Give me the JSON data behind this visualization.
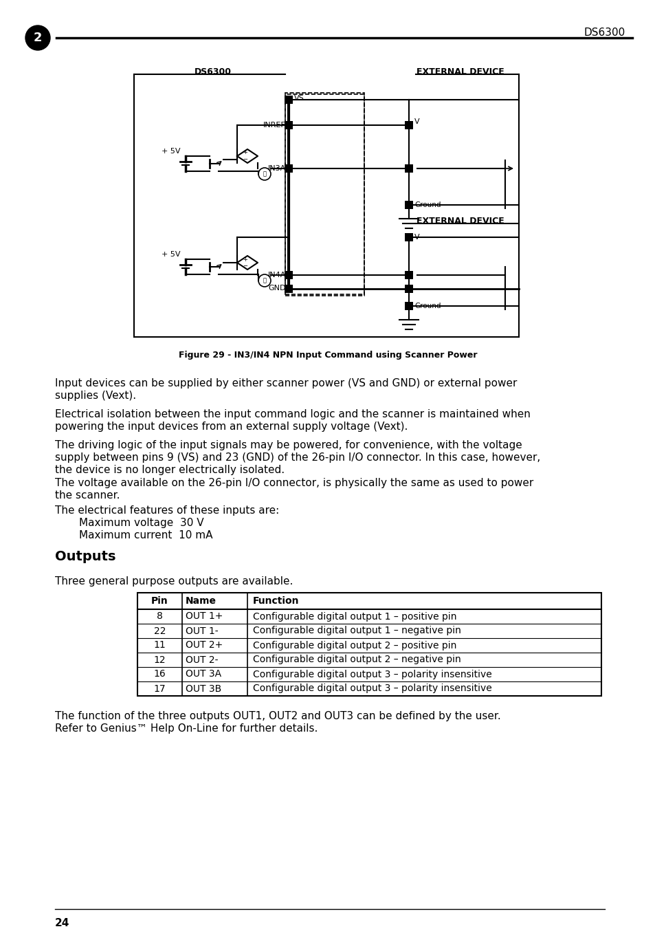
{
  "page_num": "2",
  "header_title": "DS6300",
  "figure_caption": "Figure 29 - IN3/IN4 NPN Input Command using Scanner Power",
  "section_title": "Outputs",
  "paragraph1_l1": "Input devices can be supplied by either scanner power (VS and GND) or external power",
  "paragraph1_l2": "supplies (Vext).",
  "paragraph2_l1": "Electrical isolation between the input command logic and the scanner is maintained when",
  "paragraph2_l2": "powering the input devices from an external supply voltage (Vext).",
  "paragraph3_l1": "The driving logic of the input signals may be powered, for convenience, with the voltage",
  "paragraph3_l2": "supply between pins 9 (VS) and 23 (GND) of the 26-pin I/O connector. In this case, however,",
  "paragraph3_l3": "the device is no longer electrically isolated.",
  "paragraph4_l1": "The voltage available on the 26-pin I/O connector, is physically the same as used to power",
  "paragraph4_l2": "the scanner.",
  "paragraph5": "The electrical features of these inputs are:",
  "spec1": "Maximum voltage  30 V",
  "spec2": "Maximum current  10 mA",
  "outputs_intro": "Three general purpose outputs are available.",
  "section_title_outputs": "Outputs",
  "table_headers": [
    "Pin",
    "Name",
    "Function"
  ],
  "table_rows": [
    [
      "8",
      "OUT 1+",
      "Configurable digital output 1 – positive pin"
    ],
    [
      "22",
      "OUT 1-",
      "Configurable digital output 1 – negative pin"
    ],
    [
      "11",
      "OUT 2+",
      "Configurable digital output 2 – positive pin"
    ],
    [
      "12",
      "OUT 2-",
      "Configurable digital output 2 – negative pin"
    ],
    [
      "16",
      "OUT 3A",
      "Configurable digital output 3 – polarity insensitive"
    ],
    [
      "17",
      "OUT 3B",
      "Configurable digital output 3 – polarity insensitive"
    ]
  ],
  "footnote1": "The function of the three outputs OUT1, OUT2 and OUT3 can be defined by the user.",
  "footnote2": "Refer to Genius™ Help On-Line for further details.",
  "page_footer": "24"
}
